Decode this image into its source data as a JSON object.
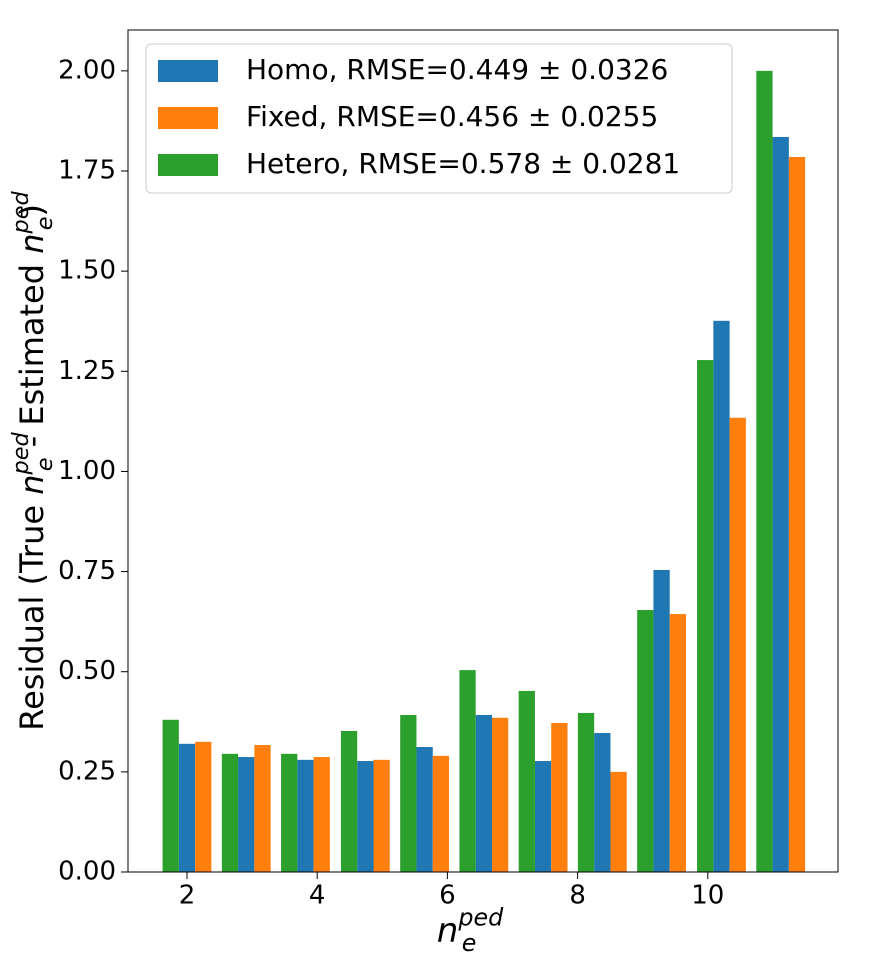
{
  "chart_data": {
    "type": "bar",
    "xlabel": "$n_e^{ped}$",
    "ylabel": "Residual (True $n_e^{ped}$ - Estimated $n_e^{ped}$)",
    "x": [
      2,
      2.91,
      3.82,
      4.74,
      5.65,
      6.56,
      7.47,
      8.38,
      9.29,
      10.21,
      11.12
    ],
    "bar_width": 0.25,
    "series": [
      {
        "name": "Homo, RMSE=0.449 ± 0.0326",
        "color": "#1f77b4",
        "offset": 0,
        "values": [
          0.32,
          0.287,
          0.28,
          0.277,
          0.312,
          0.392,
          0.277,
          0.347,
          0.754,
          1.376,
          1.835
        ]
      },
      {
        "name": "Fixed, RMSE=0.456 ± 0.0255",
        "color": "#ff7f0e",
        "offset": 1,
        "values": [
          0.325,
          0.317,
          0.287,
          0.28,
          0.29,
          0.385,
          0.372,
          0.25,
          0.644,
          1.134,
          1.785
        ]
      },
      {
        "name": "Hetero, RMSE=0.578 ± 0.0281",
        "color": "#2ca02c",
        "offset": -1,
        "values": [
          0.38,
          0.295,
          0.295,
          0.352,
          0.392,
          0.504,
          0.452,
          0.397,
          0.654,
          1.278,
          2.0
        ]
      }
    ],
    "xlim": [
      1.094,
      12.0
    ],
    "ylim": [
      0,
      2.102
    ],
    "xticks": [
      2,
      4,
      6,
      8,
      10
    ],
    "yticks": [
      {
        "value": 0,
        "label": "0.00"
      },
      {
        "value": 0.25,
        "label": "0.25"
      },
      {
        "value": 0.5,
        "label": "0.50"
      },
      {
        "value": 0.75,
        "label": "0.75"
      },
      {
        "value": 1,
        "label": "1.00"
      },
      {
        "value": 1.25,
        "label": "1.25"
      },
      {
        "value": 1.5,
        "label": "1.50"
      },
      {
        "value": 1.75,
        "label": "1.75"
      },
      {
        "value": 2,
        "label": "2.00"
      }
    ],
    "grid": false,
    "legend": "upper left"
  }
}
